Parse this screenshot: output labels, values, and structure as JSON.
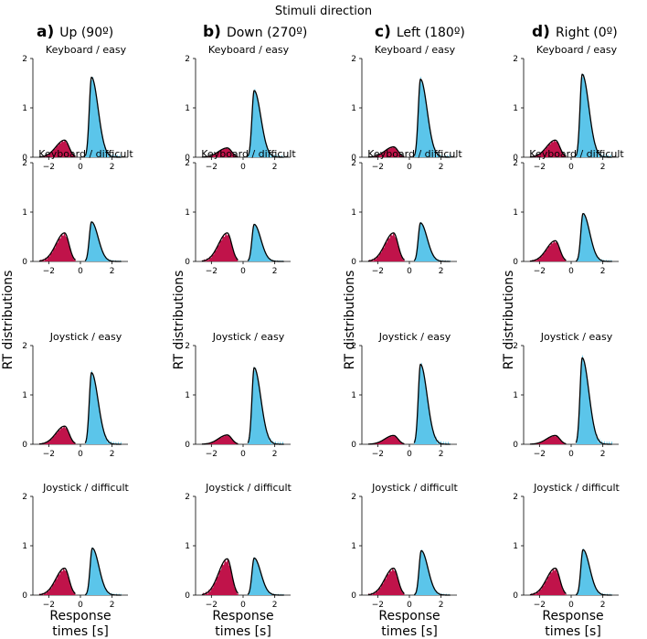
{
  "figure": {
    "title": "Stimuli direction",
    "ylabel": "RT distributions",
    "xlabel_line1": "Response",
    "xlabel_line2": "times [s]"
  },
  "colors": {
    "error": "#c0134a",
    "correct": "#5bc5ea",
    "fit": "#000000"
  },
  "columns": [
    {
      "letter": "a)",
      "label": "Up (90º)"
    },
    {
      "letter": "b)",
      "label": "Down (270º)"
    },
    {
      "letter": "c)",
      "label": "Left (180º)"
    },
    {
      "letter": "d)",
      "label": "Right (0º)"
    }
  ],
  "rows": [
    {
      "label": "Keyboard / easy"
    },
    {
      "label": "Keyboard / difficult"
    },
    {
      "label": "Joystick / easy"
    },
    {
      "label": "Joystick / difficult"
    }
  ],
  "axes": {
    "x_ticks": [
      "−2",
      "0",
      "2"
    ],
    "y_ticks": [
      "0",
      "1",
      "2"
    ],
    "xlim": [
      -3,
      3
    ],
    "ylim": [
      0,
      2
    ]
  },
  "chart_data": {
    "type": "area",
    "description_units": "RT distribution density; error responses plotted at negative times",
    "xlim": [
      -3,
      3
    ],
    "ylim": [
      0,
      2
    ],
    "panels": [
      [
        {
          "row": "Keyboard / easy",
          "column": "Up (90º)",
          "error_peak": [
            -1.0,
            0.33
          ],
          "correct_peak": [
            0.7,
            1.62
          ]
        },
        {
          "row": "Keyboard / difficult",
          "column": "Up (90º)",
          "error_peak": [
            -1.0,
            0.55
          ],
          "correct_peak": [
            0.7,
            0.8
          ]
        },
        {
          "row": "Joystick / easy",
          "column": "Up (90º)",
          "error_peak": [
            -1.0,
            0.35
          ],
          "correct_peak": [
            0.7,
            1.45
          ]
        },
        {
          "row": "Joystick / difficult",
          "column": "Up (90º)",
          "error_peak": [
            -1.0,
            0.52
          ],
          "correct_peak": [
            0.75,
            0.95
          ]
        }
      ],
      [
        {
          "row": "Keyboard / easy",
          "column": "Down (270º)",
          "error_peak": [
            -1.0,
            0.18
          ],
          "correct_peak": [
            0.7,
            1.35
          ]
        },
        {
          "row": "Keyboard / difficult",
          "column": "Down (270º)",
          "error_peak": [
            -1.0,
            0.55
          ],
          "correct_peak": [
            0.7,
            0.75
          ]
        },
        {
          "row": "Joystick / easy",
          "column": "Down (270º)",
          "error_peak": [
            -1.0,
            0.18
          ],
          "correct_peak": [
            0.7,
            1.55
          ]
        },
        {
          "row": "Joystick / difficult",
          "column": "Down (270º)",
          "error_peak": [
            -1.0,
            0.7
          ],
          "correct_peak": [
            0.7,
            0.75
          ]
        }
      ],
      [
        {
          "row": "Keyboard / easy",
          "column": "Left (180º)",
          "error_peak": [
            -1.0,
            0.2
          ],
          "correct_peak": [
            0.7,
            1.58
          ]
        },
        {
          "row": "Keyboard / difficult",
          "column": "Left (180º)",
          "error_peak": [
            -1.0,
            0.55
          ],
          "correct_peak": [
            0.7,
            0.78
          ]
        },
        {
          "row": "Joystick / easy",
          "column": "Left (180º)",
          "error_peak": [
            -1.0,
            0.17
          ],
          "correct_peak": [
            0.7,
            1.62
          ]
        },
        {
          "row": "Joystick / difficult",
          "column": "Left (180º)",
          "error_peak": [
            -1.0,
            0.52
          ],
          "correct_peak": [
            0.75,
            0.9
          ]
        }
      ],
      [
        {
          "row": "Keyboard / easy",
          "column": "Right (0º)",
          "error_peak": [
            -1.0,
            0.33
          ],
          "correct_peak": [
            0.7,
            1.68
          ]
        },
        {
          "row": "Keyboard / difficult",
          "column": "Right (0º)",
          "error_peak": [
            -1.0,
            0.4
          ],
          "correct_peak": [
            0.75,
            0.97
          ]
        },
        {
          "row": "Joystick / easy",
          "column": "Right (0º)",
          "error_peak": [
            -1.0,
            0.17
          ],
          "correct_peak": [
            0.7,
            1.75
          ]
        },
        {
          "row": "Joystick / difficult",
          "column": "Right (0º)",
          "error_peak": [
            -1.0,
            0.52
          ],
          "correct_peak": [
            0.75,
            0.92
          ]
        }
      ]
    ]
  }
}
